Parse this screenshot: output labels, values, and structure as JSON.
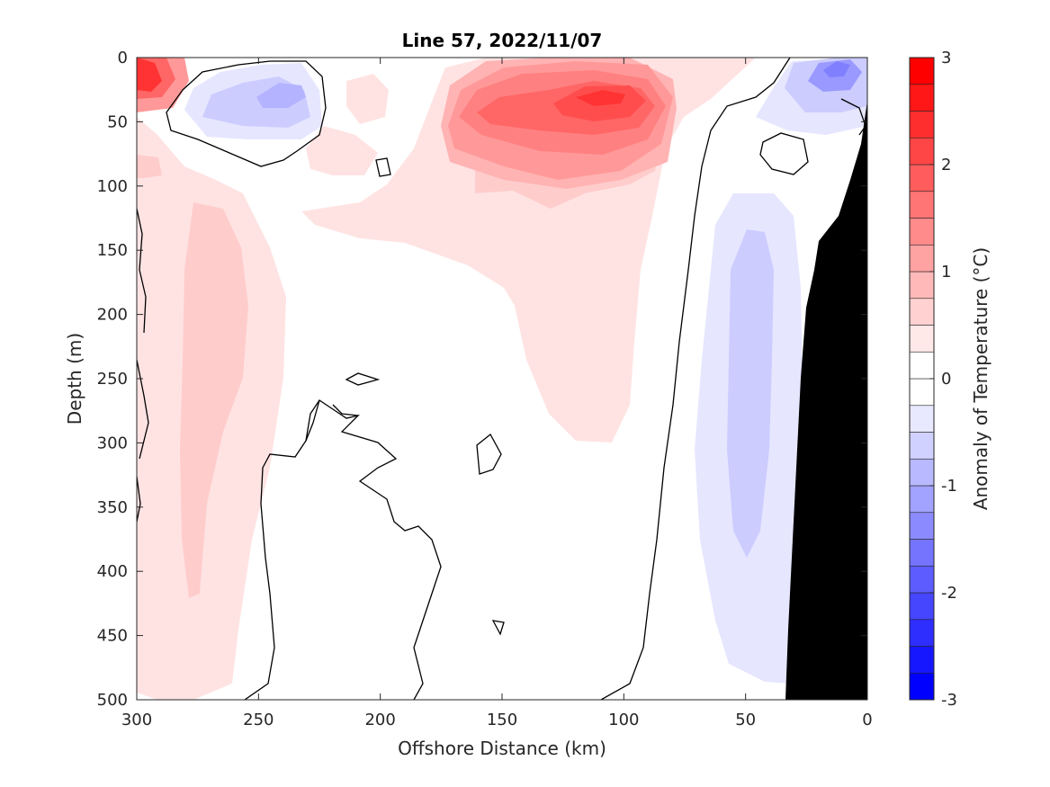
{
  "chart_data": {
    "type": "heatmap",
    "title": "Line 57, 2022/11/07",
    "xlabel": "Offshore Distance (km)",
    "ylabel": "Depth (m)",
    "colorbar_label": "Anomaly of Temperature (°C)",
    "xlim": [
      300,
      0
    ],
    "ylim": [
      0,
      500
    ],
    "x_ticks": [
      "300",
      "250",
      "200",
      "150",
      "100",
      "50",
      "0"
    ],
    "y_ticks": [
      "0",
      "50",
      "100",
      "150",
      "200",
      "250",
      "300",
      "350",
      "400",
      "450",
      "500"
    ],
    "colorbar_range": [
      -3,
      3
    ],
    "colorbar_ticks": [
      "3",
      "2",
      "1",
      "0",
      "-1",
      "-2",
      "-3"
    ],
    "contour_interval": 0.25,
    "zero_contour_color": "#000000",
    "bathymetry_color": "#000000",
    "colormap": {
      "negative": "#0000ff",
      "zero": "#ffffff",
      "positive": "#ff0000"
    },
    "features": [
      {
        "name": "surface warm core",
        "x": 115,
        "depth": 35,
        "value": 2.0
      },
      {
        "name": "nearshore surface warm patch",
        "x": 297,
        "depth": 20,
        "value": 2.3
      },
      {
        "name": "offshore cool eddy",
        "x": 238,
        "depth": 35,
        "value": -0.7
      },
      {
        "name": "coastal surface cool patch",
        "x": 13,
        "depth": 10,
        "value": -1.3
      },
      {
        "name": "subsurface cool tongue",
        "x": 45,
        "depth": 270,
        "value": -0.6
      },
      {
        "name": "deep warm tongue",
        "x": 275,
        "depth": 320,
        "value": 0.6
      },
      {
        "name": "mid-depth warm plume",
        "x": 115,
        "depth": 200,
        "value": 0.3
      }
    ]
  }
}
